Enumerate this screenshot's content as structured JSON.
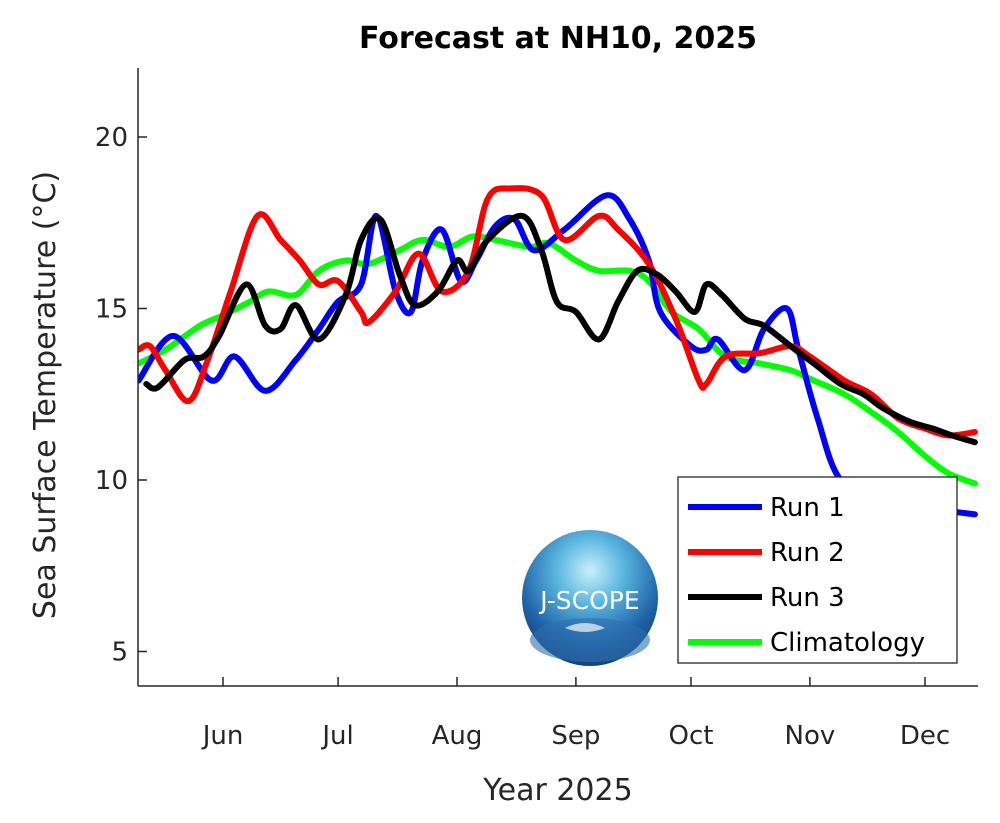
{
  "chart_data": {
    "type": "line",
    "title": "Forecast at NH10, 2025",
    "xlabel": "Year 2025",
    "ylabel": "Sea Surface Temperature (°C)",
    "ylabel_parts": {
      "main": "Sea Surface Temperature (",
      "sup": "o",
      "end": "C)"
    },
    "xlim": [
      "2025-05-10",
      "2025-12-14"
    ],
    "ylim": [
      4,
      22
    ],
    "xticks": [
      {
        "date": "2025-06-01",
        "label": "Jun"
      },
      {
        "date": "2025-07-01",
        "label": "Jul"
      },
      {
        "date": "2025-08-01",
        "label": "Aug"
      },
      {
        "date": "2025-09-01",
        "label": "Sep"
      },
      {
        "date": "2025-10-01",
        "label": "Oct"
      },
      {
        "date": "2025-11-01",
        "label": "Nov"
      },
      {
        "date": "2025-12-01",
        "label": "Dec"
      }
    ],
    "yticks": [
      5,
      10,
      15,
      20
    ],
    "grid": false,
    "legend_position": "bottom-right",
    "logo_text": "J-SCOPE",
    "series": [
      {
        "name": "Run 1",
        "color": "#0000ff",
        "points": [
          [
            "05-10",
            12.9
          ],
          [
            "05-19",
            14.2
          ],
          [
            "05-29",
            12.9
          ],
          [
            "06-04",
            13.6
          ],
          [
            "06-12",
            12.6
          ],
          [
            "06-20",
            13.5
          ],
          [
            "06-26",
            14.4
          ],
          [
            "07-01",
            15.2
          ],
          [
            "07-07",
            15.7
          ],
          [
            "07-11",
            17.7
          ],
          [
            "07-16",
            15.5
          ],
          [
            "07-20",
            14.9
          ],
          [
            "07-23",
            16.4
          ],
          [
            "07-28",
            17.3
          ],
          [
            "08-02",
            15.8
          ],
          [
            "08-06",
            16.4
          ],
          [
            "08-11",
            17.4
          ],
          [
            "08-16",
            17.6
          ],
          [
            "08-21",
            16.7
          ],
          [
            "08-29",
            17.3
          ],
          [
            "09-09",
            18.3
          ],
          [
            "09-15",
            17.6
          ],
          [
            "09-20",
            16.4
          ],
          [
            "09-23",
            14.9
          ],
          [
            "10-01",
            13.9
          ],
          [
            "10-05",
            13.8
          ],
          [
            "10-08",
            14.1
          ],
          [
            "10-15",
            13.2
          ],
          [
            "10-20",
            14.4
          ],
          [
            "10-26",
            15.0
          ],
          [
            "10-29",
            13.8
          ],
          [
            "11-03",
            11.8
          ],
          [
            "11-09",
            10.0
          ],
          [
            "11-20",
            9.4
          ],
          [
            "12-07",
            9.1
          ],
          [
            "12-14",
            9.0
          ]
        ]
      },
      {
        "name": "Run 2",
        "color": "#ff0000",
        "points": [
          [
            "05-10",
            13.8
          ],
          [
            "05-13",
            13.9
          ],
          [
            "05-17",
            13.2
          ],
          [
            "05-23",
            12.3
          ],
          [
            "05-28",
            13.5
          ],
          [
            "06-03",
            15.5
          ],
          [
            "06-10",
            17.7
          ],
          [
            "06-16",
            17.0
          ],
          [
            "06-21",
            16.4
          ],
          [
            "06-26",
            15.7
          ],
          [
            "07-01",
            15.8
          ],
          [
            "07-07",
            14.9
          ],
          [
            "07-09",
            14.6
          ],
          [
            "07-16",
            15.5
          ],
          [
            "07-22",
            16.6
          ],
          [
            "07-28",
            15.5
          ],
          [
            "08-04",
            16.1
          ],
          [
            "08-09",
            18.2
          ],
          [
            "08-15",
            18.5
          ],
          [
            "08-23",
            18.3
          ],
          [
            "08-29",
            17.0
          ],
          [
            "09-07",
            17.7
          ],
          [
            "09-12",
            17.3
          ],
          [
            "09-20",
            16.3
          ],
          [
            "09-27",
            14.7
          ],
          [
            "10-03",
            12.9
          ],
          [
            "10-05",
            12.8
          ],
          [
            "10-10",
            13.6
          ],
          [
            "10-19",
            13.7
          ],
          [
            "10-27",
            13.9
          ],
          [
            "11-01",
            13.6
          ],
          [
            "11-10",
            12.9
          ],
          [
            "11-17",
            12.5
          ],
          [
            "11-24",
            11.8
          ],
          [
            "12-01",
            11.5
          ],
          [
            "12-07",
            11.3
          ],
          [
            "12-14",
            11.4
          ]
        ]
      },
      {
        "name": "Run 3",
        "color": "#000000",
        "points": [
          [
            "05-12",
            12.8
          ],
          [
            "05-15",
            12.7
          ],
          [
            "05-22",
            13.5
          ],
          [
            "05-27",
            13.6
          ],
          [
            "05-31",
            14.2
          ],
          [
            "06-07",
            15.7
          ],
          [
            "06-12",
            14.5
          ],
          [
            "06-16",
            14.4
          ],
          [
            "06-20",
            15.1
          ],
          [
            "06-26",
            14.1
          ],
          [
            "07-03",
            15.4
          ],
          [
            "07-07",
            17.0
          ],
          [
            "07-12",
            17.6
          ],
          [
            "07-17",
            16.0
          ],
          [
            "07-21",
            15.1
          ],
          [
            "07-27",
            15.5
          ],
          [
            "08-01",
            16.4
          ],
          [
            "08-04",
            16.1
          ],
          [
            "08-09",
            17.0
          ],
          [
            "08-18",
            17.7
          ],
          [
            "08-23",
            16.7
          ],
          [
            "08-27",
            15.2
          ],
          [
            "09-01",
            14.9
          ],
          [
            "09-07",
            14.1
          ],
          [
            "09-12",
            15.2
          ],
          [
            "09-17",
            16.1
          ],
          [
            "09-22",
            16.0
          ],
          [
            "09-27",
            15.5
          ],
          [
            "10-02",
            14.9
          ],
          [
            "10-05",
            15.7
          ],
          [
            "10-09",
            15.4
          ],
          [
            "10-15",
            14.7
          ],
          [
            "10-20",
            14.5
          ],
          [
            "10-27",
            13.9
          ],
          [
            "11-02",
            13.4
          ],
          [
            "11-09",
            12.8
          ],
          [
            "11-15",
            12.5
          ],
          [
            "11-20",
            12.1
          ],
          [
            "11-27",
            11.7
          ],
          [
            "12-03",
            11.5
          ],
          [
            "12-08",
            11.3
          ],
          [
            "12-14",
            11.1
          ]
        ]
      },
      {
        "name": "Climatology",
        "color": "#00ff00",
        "points": [
          [
            "05-10",
            13.4
          ],
          [
            "05-17",
            13.8
          ],
          [
            "05-26",
            14.5
          ],
          [
            "06-01",
            14.8
          ],
          [
            "06-08",
            15.2
          ],
          [
            "06-13",
            15.5
          ],
          [
            "06-20",
            15.4
          ],
          [
            "06-26",
            16.1
          ],
          [
            "07-03",
            16.4
          ],
          [
            "07-09",
            16.3
          ],
          [
            "07-17",
            16.7
          ],
          [
            "07-23",
            17.0
          ],
          [
            "07-30",
            16.8
          ],
          [
            "08-05",
            17.1
          ],
          [
            "08-11",
            17.0
          ],
          [
            "08-20",
            16.8
          ],
          [
            "08-25",
            16.9
          ],
          [
            "09-01",
            16.4
          ],
          [
            "09-07",
            16.1
          ],
          [
            "09-15",
            16.1
          ],
          [
            "09-20",
            15.8
          ],
          [
            "09-26",
            14.9
          ],
          [
            "10-03",
            14.4
          ],
          [
            "10-10",
            13.6
          ],
          [
            "10-19",
            13.4
          ],
          [
            "10-27",
            13.2
          ],
          [
            "11-02",
            12.9
          ],
          [
            "11-10",
            12.5
          ],
          [
            "11-18",
            11.9
          ],
          [
            "11-24",
            11.4
          ],
          [
            "12-01",
            10.7
          ],
          [
            "12-07",
            10.2
          ],
          [
            "12-14",
            9.9
          ]
        ]
      }
    ]
  }
}
